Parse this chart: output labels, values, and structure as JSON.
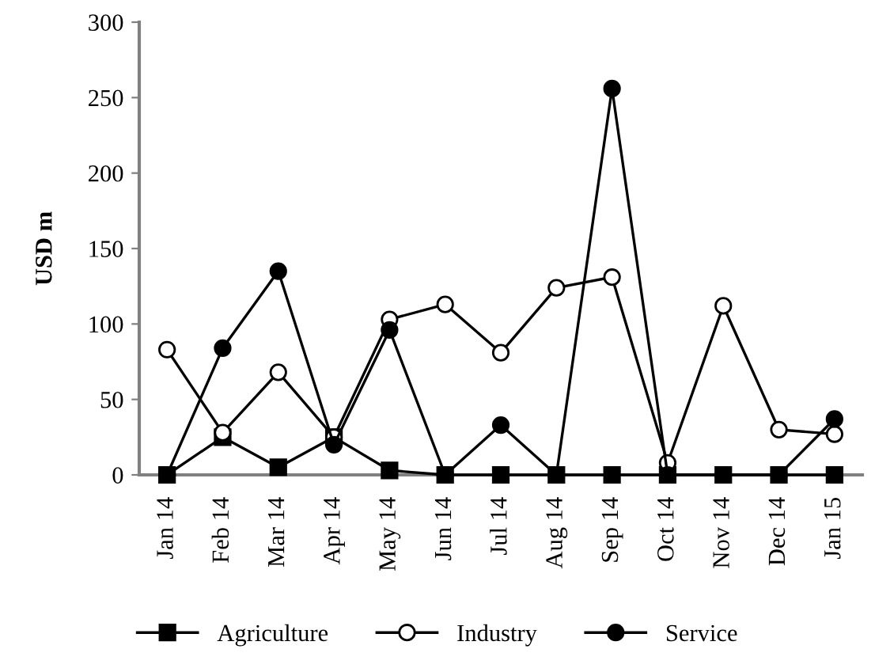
{
  "chart_data": {
    "type": "line",
    "ylabel": "USD m",
    "categories": [
      "Jan 14",
      "Feb 14",
      "Mar 14",
      "Apr 14",
      "May 14",
      "Jun 14",
      "Jul 14",
      "Aug 14",
      "Sep 14",
      "Oct 14",
      "Nov 14",
      "Dec 14",
      "Jan 15"
    ],
    "series": [
      {
        "name": "Agriculture",
        "color": "#000000",
        "marker": "square",
        "values": [
          0,
          25,
          5,
          25,
          3,
          0,
          0,
          0,
          0,
          0,
          0,
          0,
          0
        ]
      },
      {
        "name": "Industry",
        "color": "#ffffff",
        "marker": "circle",
        "values": [
          83,
          28,
          68,
          25,
          103,
          113,
          81,
          124,
          131,
          8,
          112,
          30,
          27
        ]
      },
      {
        "name": "Service",
        "color": "#000000",
        "marker": "circle",
        "values": [
          0,
          84,
          135,
          20,
          96,
          0,
          33,
          0,
          256,
          0,
          0,
          0,
          37
        ]
      }
    ],
    "ylim": [
      0,
      300
    ],
    "yticks": [
      0,
      50,
      100,
      150,
      200,
      250,
      300
    ],
    "grid": false,
    "legend": "bottom",
    "line_style": "solid"
  }
}
